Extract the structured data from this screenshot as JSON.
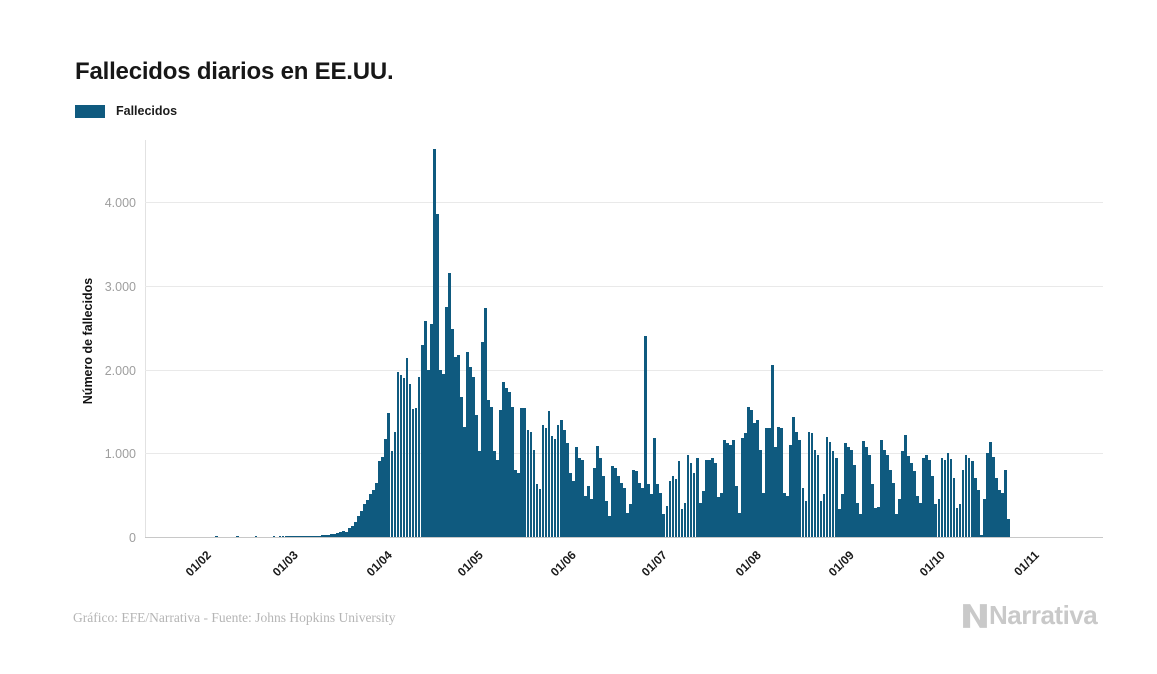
{
  "title": "Fallecidos diarios en EE.UU.",
  "legend": {
    "label": "Fallecidos"
  },
  "y_axis": {
    "title": "Número de fallecidos"
  },
  "footer": {
    "credit": "Gráfico: EFE/Narrativa - Fuente: Johns Hopkins University"
  },
  "logo": {
    "text": "Narrativa"
  },
  "colors": {
    "bar": "#0f5a7f",
    "grid": "#e9e9e9",
    "axis": "#c8c8c8"
  },
  "chart_data": {
    "type": "bar",
    "title": "Fallecidos diarios en EE.UU.",
    "series_name": "Fallecidos",
    "xlabel": "",
    "ylabel": "Número de fallecidos",
    "ylim": [
      0,
      4755
    ],
    "grid": "horizontal",
    "legend_position": "top-left",
    "x_start_date": "2020-01-27",
    "x_frequency": "daily",
    "y_ticks": [
      {
        "label": "0",
        "value": 0
      },
      {
        "label": "1.000",
        "value": 1000
      },
      {
        "label": "2.000",
        "value": 2000
      },
      {
        "label": "3.000",
        "value": 3000
      },
      {
        "label": "4.000",
        "value": 4000
      }
    ],
    "x_ticks": [
      {
        "label": "01/02",
        "day_index": 5
      },
      {
        "label": "01/03",
        "day_index": 34
      },
      {
        "label": "01/04",
        "day_index": 65
      },
      {
        "label": "01/05",
        "day_index": 95
      },
      {
        "label": "01/06",
        "day_index": 126
      },
      {
        "label": "01/07",
        "day_index": 156
      },
      {
        "label": "01/08",
        "day_index": 187
      },
      {
        "label": "01/09",
        "day_index": 218
      },
      {
        "label": "01/10",
        "day_index": 248
      },
      {
        "label": "01/11",
        "day_index": 279
      }
    ],
    "values": [
      0,
      0,
      0,
      0,
      0,
      0,
      0,
      0,
      0,
      0,
      0,
      1,
      0,
      0,
      0,
      0,
      0,
      0,
      1,
      0,
      0,
      0,
      0,
      0,
      1,
      0,
      0,
      0,
      0,
      0,
      1,
      0,
      2,
      3,
      1,
      5,
      7,
      4,
      3,
      8,
      6,
      5,
      7,
      9,
      12,
      15,
      19,
      22,
      26,
      32,
      38,
      45,
      57,
      68,
      62,
      110,
      135,
      180,
      247,
      312,
      398,
      445,
      515,
      560,
      640,
      910,
      960,
      1170,
      1480,
      1030,
      1255,
      1970,
      1940,
      1900,
      2135,
      1830,
      1530,
      1540,
      1915,
      2300,
      2580,
      1990,
      2545,
      4640,
      3860,
      1990,
      1950,
      2745,
      3160,
      2490,
      2155,
      2175,
      1675,
      1320,
      2210,
      2030,
      1910,
      1460,
      1025,
      2330,
      2740,
      1635,
      1555,
      1025,
      925,
      1520,
      1855,
      1775,
      1735,
      1555,
      805,
      765,
      1540,
      1540,
      1280,
      1260,
      1045,
      630,
      570,
      1340,
      1300,
      1505,
      1210,
      1175,
      1340,
      1400,
      1280,
      1120,
      765,
      670,
      1080,
      945,
      925,
      490,
      610,
      450,
      825,
      1085,
      945,
      725,
      430,
      255,
      845,
      825,
      725,
      650,
      590,
      290,
      390,
      805,
      785,
      650,
      590,
      2405,
      630,
      510,
      1180,
      630,
      530,
      275,
      370,
      670,
      730,
      690,
      905,
      330,
      410,
      985,
      885,
      765,
      940,
      410,
      550,
      925,
      925,
      945,
      890,
      480,
      530,
      1160,
      1120,
      1100,
      1160,
      610,
      290,
      1180,
      1245,
      1555,
      1520,
      1360,
      1400,
      1045,
      530,
      1300,
      1300,
      2050,
      1080,
      1320,
      1300,
      530,
      490,
      1100,
      1430,
      1260,
      1160,
      590,
      430,
      1260,
      1240,
      1045,
      980,
      430,
      510,
      1200,
      1140,
      1025,
      940,
      330,
      510,
      1120,
      1080,
      1045,
      865,
      410,
      275,
      1150,
      1080,
      985,
      630,
      350,
      360,
      1160,
      1045,
      985,
      805,
      640,
      275,
      450,
      1025,
      1220,
      965,
      885,
      790,
      490,
      410,
      945,
      985,
      925,
      725,
      390,
      450,
      945,
      915,
      1005,
      935,
      700,
      345,
      390,
      800,
      985,
      940,
      905,
      700,
      560,
      30,
      455,
      1005,
      1130,
      950,
      700,
      560,
      530,
      805,
      210
    ]
  }
}
